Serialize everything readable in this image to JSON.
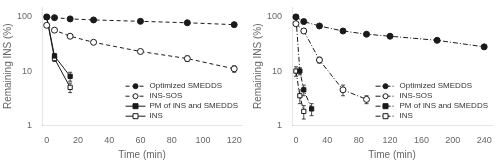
{
  "chart_data": [
    {
      "type": "line",
      "x_label": "Time (min)",
      "y_label": "Remaining INS (%)",
      "xlim": [
        -3,
        125
      ],
      "xticks": [
        0,
        20,
        40,
        60,
        80,
        100,
        120
      ],
      "ylim": [
        1,
        150
      ],
      "yticks": [
        1,
        10,
        100
      ],
      "log": "y",
      "grid": false,
      "legend": "lower right",
      "series": [
        {
          "name": "Optimized SMEDDS",
          "color": "#1a1a1a",
          "marker": "circle",
          "line_style": "dashed",
          "x": [
            0,
            5,
            15,
            30,
            60,
            90,
            120
          ],
          "values": [
            100,
            97,
            92,
            88,
            83,
            78,
            72
          ],
          "yerr": [
            1.5,
            1.5,
            1.5,
            1.5,
            1.5,
            1.5,
            1.5
          ]
        },
        {
          "name": "INS-SOS",
          "color": "#1a1a1a",
          "marker": "open circle",
          "line_style": "dashed",
          "x": [
            0,
            5,
            15,
            30,
            60,
            90,
            120
          ],
          "values": [
            70,
            57,
            44,
            34,
            23,
            17,
            11
          ],
          "yerr": [
            2.5,
            2.5,
            2.5,
            2.5,
            2,
            2,
            1.5
          ]
        },
        {
          "name": "PM of INS and SMEDDS",
          "color": "#1a1a1a",
          "marker": "square",
          "line_style": "solid",
          "x": [
            0,
            5,
            15
          ],
          "values": [
            100,
            19,
            8
          ],
          "yerr": [
            1.5,
            2,
            1.5
          ]
        },
        {
          "name": "INS",
          "color": "#1a1a1a",
          "marker": "open square",
          "line_style": "solid",
          "x": [
            0,
            5,
            15
          ],
          "values": [
            98,
            17,
            5
          ],
          "yerr": [
            1.5,
            2,
            1
          ]
        }
      ]
    },
    {
      "type": "line",
      "x_label": "Time (min)",
      "y_label": "Remaining INS (%)",
      "xlim": [
        -5,
        250
      ],
      "xticks": [
        0,
        40,
        80,
        120,
        160,
        200,
        240
      ],
      "ylim": [
        1,
        150
      ],
      "yticks": [
        1,
        10,
        100
      ],
      "log": "y",
      "grid": false,
      "legend": "lower right",
      "series": [
        {
          "name": "Optimized SMEDDS",
          "color": "#1a1a1a",
          "marker": "circle",
          "line_style": "dashdot",
          "x": [
            0,
            10,
            30,
            60,
            90,
            120,
            180,
            240
          ],
          "values": [
            100,
            82,
            68,
            55,
            48,
            44,
            37,
            28
          ],
          "yerr": [
            1.5,
            2,
            2.5,
            2.5,
            2.5,
            2.5,
            2.5,
            2.5
          ]
        },
        {
          "name": "INS-SOS",
          "color": "#1a1a1a",
          "marker": "open circle",
          "line_style": "dashdot",
          "x": [
            0,
            10,
            30,
            60,
            90
          ],
          "values": [
            75,
            55,
            16,
            4.5,
            3
          ],
          "yerr": [
            3,
            3,
            2,
            1,
            0.5
          ]
        },
        {
          "name": "PM of INS and SMEDDS",
          "color": "#1a1a1a",
          "marker": "square",
          "line_style": "dashdot",
          "x": [
            0,
            5,
            10,
            20
          ],
          "values": [
            100,
            10,
            4.5,
            2
          ],
          "yerr": [
            1.5,
            1.5,
            1,
            0.5
          ]
        },
        {
          "name": "INS",
          "color": "#1a1a1a",
          "marker": "open square",
          "line_style": "dashdot",
          "x": [
            0,
            5,
            10
          ],
          "values": [
            10,
            3.5,
            1.8
          ],
          "yerr": [
            2,
            1,
            0.5
          ]
        }
      ]
    }
  ]
}
